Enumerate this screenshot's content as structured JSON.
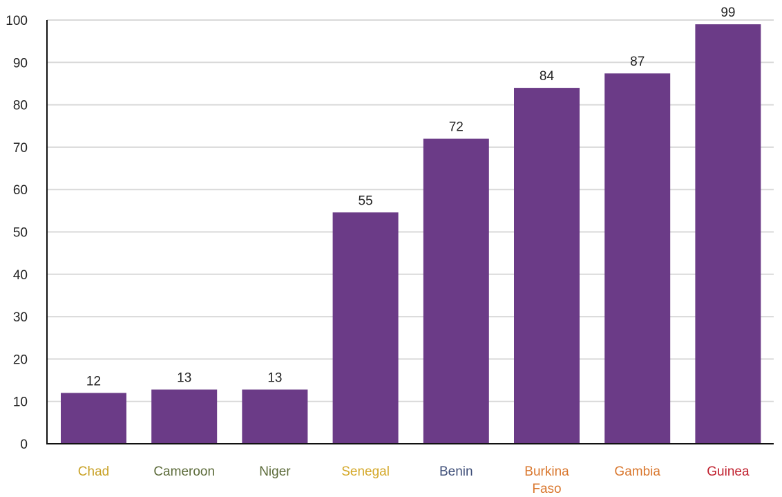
{
  "chart_data": {
    "type": "bar",
    "categories": [
      "Chad",
      "Cameroon",
      "Niger",
      "Senegal",
      "Benin",
      "Burkina Faso",
      "Gambia",
      "Guinea"
    ],
    "category_lines": [
      [
        "Chad"
      ],
      [
        "Cameroon"
      ],
      [
        "Niger"
      ],
      [
        "Senegal"
      ],
      [
        "Benin"
      ],
      [
        "Burkina",
        "Faso"
      ],
      [
        "Gambia"
      ],
      [
        "Guinea"
      ]
    ],
    "values": [
      12,
      13,
      13,
      55,
      72,
      84,
      87,
      99
    ],
    "value_labels": [
      "12",
      "13",
      "13",
      "55",
      "72",
      "84",
      "87",
      "99"
    ],
    "bar_values_plotted": [
      12,
      12.8,
      12.8,
      54.6,
      72,
      84,
      87.4,
      99
    ],
    "category_colors": [
      "#c9a227",
      "#5c6b3a",
      "#5c6b3a",
      "#d4a829",
      "#3f4f79",
      "#d9772e",
      "#d9772e",
      "#c0202e"
    ],
    "bar_color": "#6b3b87",
    "title": "",
    "xlabel": "",
    "ylabel": "",
    "ylim": [
      0,
      100
    ],
    "yticks": [
      0,
      10,
      20,
      30,
      40,
      50,
      60,
      70,
      80,
      90,
      100
    ],
    "grid": true,
    "legend": "none"
  }
}
